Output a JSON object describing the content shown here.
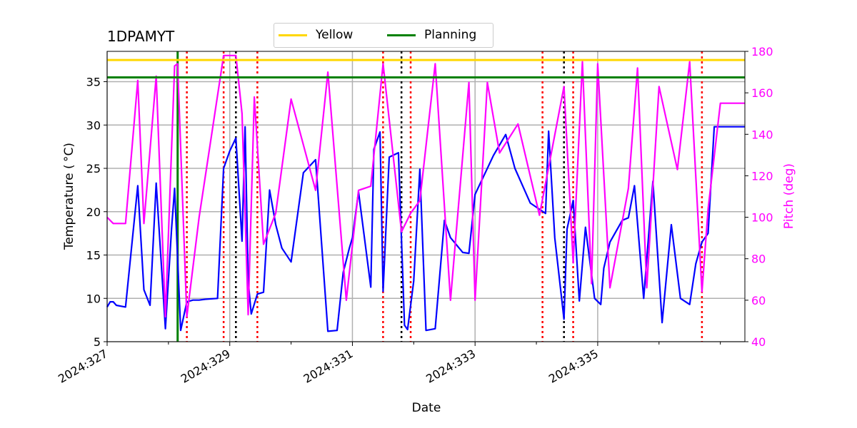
{
  "chart_data": {
    "type": "line",
    "title": "1DPAMYT",
    "xlabel": "Date",
    "ylabel_left": "Temperature ($^\\circ$C)",
    "ylabel_left_display": "Temperature ( °C)",
    "ylabel_right": "Pitch (deg)",
    "x_range_days": [
      327,
      337.4
    ],
    "ylim_left": [
      5,
      38.5
    ],
    "ylim_right": [
      40,
      180
    ],
    "x_tick_labels": [
      "2024:327",
      "2024:329",
      "2024:331",
      "2024:333",
      "2024:335"
    ],
    "x_tick_days": [
      327,
      329,
      331,
      333,
      335
    ],
    "y_left_ticks": [
      5,
      10,
      15,
      20,
      25,
      30,
      35
    ],
    "y_right_ticks": [
      40,
      60,
      80,
      100,
      120,
      140,
      160,
      180
    ],
    "grid": true,
    "legend": {
      "placement": "top-center",
      "entries": [
        {
          "name": "Yellow",
          "color": "#ffd700"
        },
        {
          "name": "Planning",
          "color": "#008000"
        }
      ]
    },
    "thresholds": [
      {
        "name": "Yellow",
        "value": 37.5,
        "color": "#ffd700"
      },
      {
        "name": "Planning",
        "value": 35.5,
        "color": "#008000"
      }
    ],
    "vertical_lines": {
      "green_solid_day": 328.15,
      "red_dotted_days": [
        328.3,
        328.9,
        329.45,
        331.5,
        331.95,
        334.1,
        334.6,
        336.7
      ],
      "black_dotted_days": [
        329.1,
        331.8,
        334.45
      ]
    },
    "series": [
      {
        "name": "Temperature",
        "axis": "left",
        "color": "#0000ff",
        "x": [
          327.0,
          327.05,
          327.1,
          327.15,
          327.3,
          327.5,
          327.6,
          327.7,
          327.8,
          327.95,
          328.05,
          328.1,
          328.2,
          328.3,
          328.4,
          328.5,
          328.6,
          328.8,
          328.9,
          329.0,
          329.1,
          329.2,
          329.25,
          329.3,
          329.35,
          329.45,
          329.55,
          329.65,
          329.75,
          329.85,
          330.0,
          330.2,
          330.4,
          330.6,
          330.75,
          330.85,
          330.95,
          331.0,
          331.1,
          331.3,
          331.35,
          331.45,
          331.5,
          331.6,
          331.75,
          331.85,
          331.9,
          332.0,
          332.1,
          332.2,
          332.35,
          332.5,
          332.6,
          332.8,
          332.9,
          333.0,
          333.3,
          333.5,
          333.65,
          333.9,
          334.15,
          334.2,
          334.3,
          334.45,
          334.5,
          334.6,
          334.7,
          334.8,
          334.95,
          335.05,
          335.1,
          335.2,
          335.4,
          335.5,
          335.6,
          335.75,
          335.9,
          336.05,
          336.2,
          336.35,
          336.5,
          336.6,
          336.7,
          336.8,
          336.9,
          337.0,
          337.1,
          337.25,
          337.4
        ],
        "y": [
          9.0,
          9.6,
          9.6,
          9.2,
          9.0,
          23.0,
          11.0,
          9.2,
          23.3,
          6.5,
          18.0,
          22.7,
          6.3,
          9.6,
          9.8,
          9.8,
          9.9,
          10.0,
          25.0,
          27.0,
          28.5,
          16.6,
          29.8,
          12.0,
          8.2,
          10.5,
          10.7,
          22.5,
          18.5,
          15.8,
          14.2,
          24.5,
          26.0,
          6.2,
          6.3,
          13.0,
          15.8,
          17.0,
          22.3,
          11.3,
          27.2,
          29.2,
          10.8,
          26.3,
          26.8,
          6.9,
          6.4,
          12.0,
          24.9,
          6.3,
          6.5,
          19.0,
          17.0,
          15.3,
          15.2,
          22.0,
          26.5,
          28.9,
          25.0,
          21.0,
          19.8,
          29.3,
          17.0,
          7.6,
          18.0,
          21.3,
          9.7,
          18.2,
          10.0,
          9.3,
          13.5,
          16.5,
          19.0,
          19.3,
          23.0,
          10.0,
          23.5,
          7.2,
          18.5,
          10.0,
          9.3,
          14.0,
          16.5,
          17.5,
          29.8,
          29.8,
          29.8,
          29.8,
          29.8
        ]
      },
      {
        "name": "Pitch",
        "axis": "right",
        "color": "#ff00ff",
        "x": [
          327.0,
          327.1,
          327.3,
          327.5,
          327.6,
          327.8,
          327.95,
          328.1,
          328.15,
          328.3,
          328.5,
          328.9,
          329.1,
          329.2,
          329.3,
          329.4,
          329.55,
          329.75,
          330.0,
          330.4,
          330.6,
          330.9,
          331.1,
          331.3,
          331.5,
          331.8,
          331.95,
          332.1,
          332.35,
          332.6,
          332.9,
          333.0,
          333.2,
          333.4,
          333.7,
          334.05,
          334.45,
          334.6,
          334.75,
          334.9,
          335.0,
          335.2,
          335.5,
          335.65,
          335.8,
          336.0,
          336.3,
          336.5,
          336.7,
          336.8,
          337.0,
          337.4
        ],
        "y": [
          100,
          97,
          97,
          166,
          97,
          168,
          52,
          173,
          174,
          52,
          100,
          178,
          178,
          150,
          53,
          158,
          87,
          102,
          157,
          113,
          170,
          60,
          113,
          115,
          174,
          93,
          102,
          108,
          174,
          60,
          165,
          60,
          165,
          131,
          145,
          101,
          163,
          78,
          175,
          68,
          174,
          66,
          114,
          172,
          66,
          163,
          123,
          175,
          64,
          104,
          155,
          155
        ]
      }
    ]
  }
}
